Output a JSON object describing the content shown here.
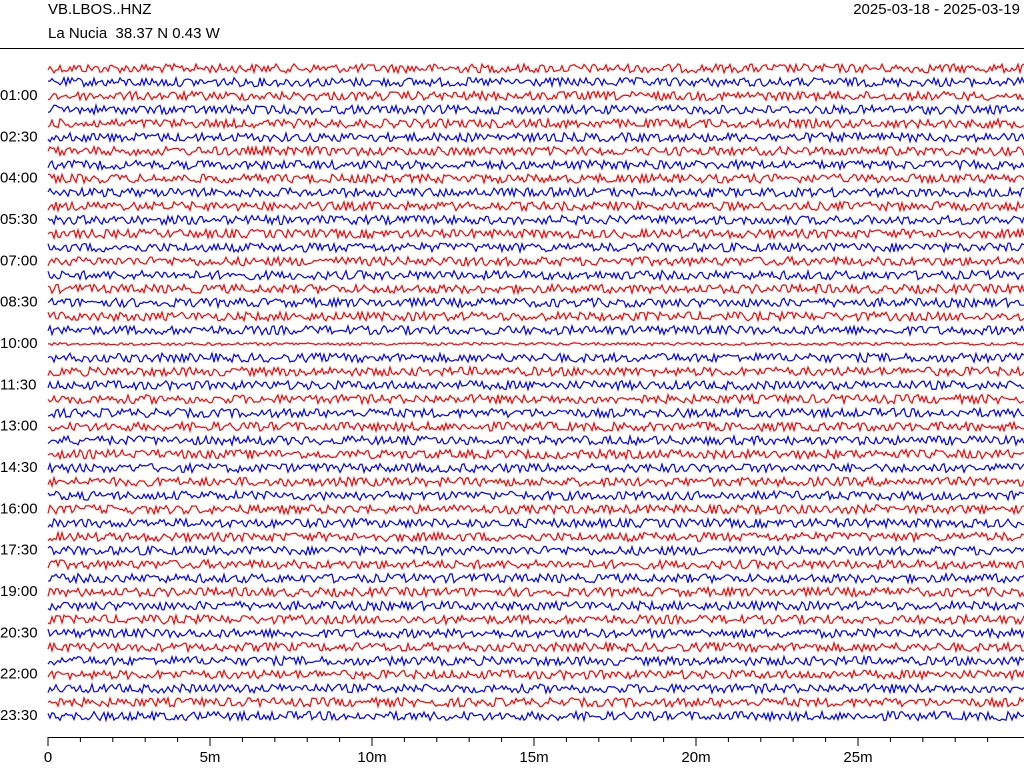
{
  "header": {
    "station": "VB.LBOS..HNZ",
    "location": "La Nucia  38.37 N 0.43 W",
    "dates": "2025-03-18 - 2025-03-19"
  },
  "chart_data": {
    "type": "helicorder",
    "row_labels": [
      "01:00",
      "02:30",
      "04:00",
      "05:30",
      "07:00",
      "08:30",
      "10:00",
      "11:30",
      "13:00",
      "14:30",
      "16:00",
      "17:30",
      "19:00",
      "20:30",
      "22:00",
      "23:30"
    ],
    "colors": [
      "#ff0000",
      "#0000ff"
    ],
    "xlim": [
      0,
      30
    ],
    "xticks": [
      {
        "value": 0,
        "label": "0"
      },
      {
        "value": 5,
        "label": "5m"
      },
      {
        "value": 10,
        "label": "10m"
      },
      {
        "value": 15,
        "label": "15m"
      },
      {
        "value": 20,
        "label": "20m"
      },
      {
        "value": 25,
        "label": "25m"
      }
    ]
  }
}
